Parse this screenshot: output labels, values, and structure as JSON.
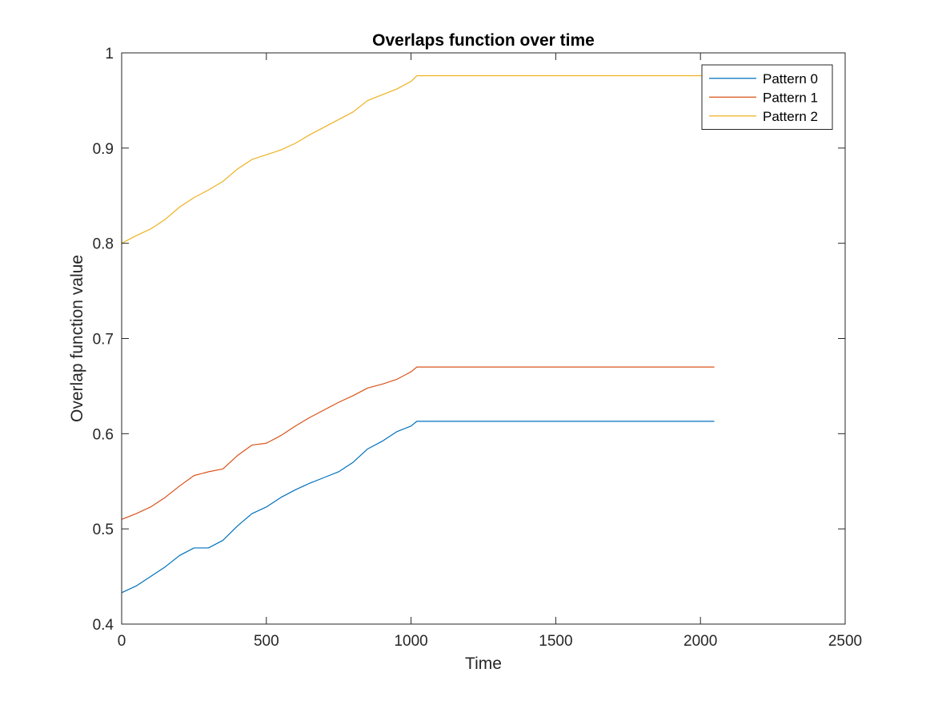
{
  "chart_data": {
    "type": "line",
    "title": "Overlaps function over time",
    "xlabel": "Time",
    "ylabel": "Overlap function value",
    "xlim": [
      0,
      2500
    ],
    "ylim": [
      0.4,
      1
    ],
    "x_ticks": [
      0,
      500,
      1000,
      1500,
      2000,
      2500
    ],
    "x_tick_labels": [
      "0",
      "500",
      "1000",
      "1500",
      "2000",
      "2500"
    ],
    "y_ticks": [
      0.4,
      0.5,
      0.6,
      0.7,
      0.8,
      0.9,
      1
    ],
    "y_tick_labels": [
      "0.4",
      "0.5",
      "0.6",
      "0.7",
      "0.8",
      "0.9",
      "1"
    ],
    "grid": false,
    "legend_position": "top-right",
    "series": [
      {
        "name": "Pattern 0",
        "color": "#0072BD",
        "x": [
          0,
          50,
          100,
          150,
          200,
          250,
          300,
          350,
          400,
          450,
          500,
          550,
          600,
          650,
          700,
          750,
          800,
          850,
          900,
          950,
          1000,
          1020,
          2048
        ],
        "y": [
          0.433,
          0.44,
          0.45,
          0.46,
          0.472,
          0.48,
          0.48,
          0.488,
          0.503,
          0.516,
          0.523,
          0.533,
          0.541,
          0.548,
          0.554,
          0.56,
          0.57,
          0.584,
          0.592,
          0.602,
          0.608,
          0.613,
          0.613
        ]
      },
      {
        "name": "Pattern 1",
        "color": "#D95319",
        "x": [
          0,
          50,
          100,
          150,
          200,
          250,
          300,
          350,
          400,
          450,
          500,
          550,
          600,
          650,
          700,
          750,
          800,
          850,
          900,
          950,
          1000,
          1020,
          2048
        ],
        "y": [
          0.51,
          0.516,
          0.523,
          0.533,
          0.545,
          0.556,
          0.56,
          0.563,
          0.577,
          0.588,
          0.59,
          0.598,
          0.608,
          0.617,
          0.625,
          0.633,
          0.64,
          0.648,
          0.652,
          0.657,
          0.665,
          0.67,
          0.67
        ]
      },
      {
        "name": "Pattern 2",
        "color": "#EDB120",
        "x": [
          0,
          50,
          100,
          150,
          200,
          250,
          300,
          350,
          400,
          450,
          500,
          550,
          600,
          650,
          700,
          750,
          800,
          850,
          900,
          950,
          1000,
          1020,
          2048
        ],
        "y": [
          0.8,
          0.808,
          0.815,
          0.825,
          0.838,
          0.848,
          0.856,
          0.865,
          0.878,
          0.888,
          0.893,
          0.898,
          0.905,
          0.914,
          0.922,
          0.93,
          0.938,
          0.95,
          0.956,
          0.962,
          0.97,
          0.976,
          0.976
        ]
      }
    ]
  }
}
